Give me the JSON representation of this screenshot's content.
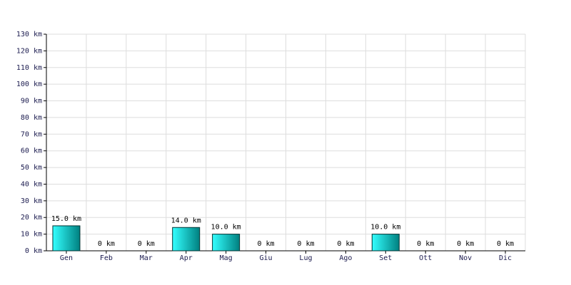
{
  "chart_data": {
    "type": "bar",
    "categories": [
      "Gen",
      "Feb",
      "Mar",
      "Apr",
      "Mag",
      "Giu",
      "Lug",
      "Ago",
      "Set",
      "Ott",
      "Nov",
      "Dic"
    ],
    "values": [
      15,
      0,
      0,
      14,
      10,
      0,
      0,
      0,
      10,
      0,
      0,
      0
    ],
    "value_labels": [
      "15.0 km",
      "0 km",
      "0 km",
      "14.0 km",
      "10.0 km",
      "0 km",
      "0 km",
      "0 km",
      "10.0 km",
      "0 km",
      "0 km",
      "0 km"
    ],
    "color": "#00cccc",
    "ylim": [
      0,
      130
    ],
    "yticks": [
      {
        "value": 0,
        "label": "0 km"
      },
      {
        "value": 10,
        "label": "10 km"
      },
      {
        "value": 20,
        "label": "20 km"
      },
      {
        "value": 30,
        "label": "30 km"
      },
      {
        "value": 40,
        "label": "40 km"
      },
      {
        "value": 50,
        "label": "50 km"
      },
      {
        "value": 60,
        "label": "60 km"
      },
      {
        "value": 70,
        "label": "70 km"
      },
      {
        "value": 80,
        "label": "80 km"
      },
      {
        "value": 90,
        "label": "90 km"
      },
      {
        "value": 100,
        "label": "100 km"
      },
      {
        "value": 110,
        "label": "110 km"
      },
      {
        "value": 120,
        "label": "120 km"
      },
      {
        "value": 130,
        "label": "130 km"
      }
    ],
    "grid": true
  }
}
